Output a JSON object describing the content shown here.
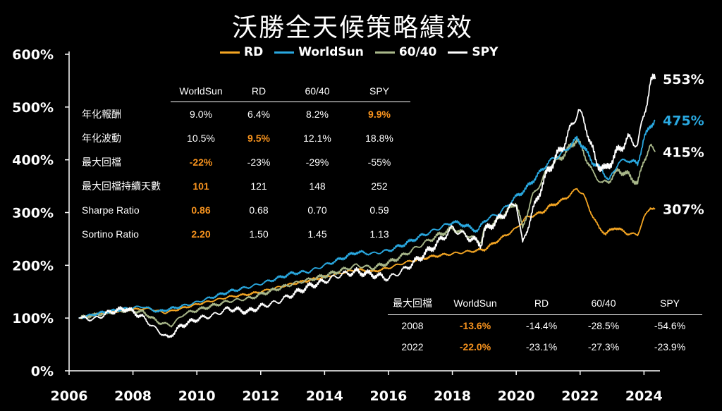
{
  "title": "沃勝全天候策略績效",
  "chart_data": {
    "type": "line",
    "title": "沃勝全天候策略績效",
    "xlim": [
      2006,
      2024.5
    ],
    "ylim": [
      0,
      600
    ],
    "xticks": [
      "2006",
      "2008",
      "2010",
      "2012",
      "2014",
      "2016",
      "2018",
      "2020",
      "2022",
      "2024"
    ],
    "yticks": [
      "0%",
      "100%",
      "200%",
      "300%",
      "400%",
      "500%",
      "600%"
    ],
    "legend_position": "top-center",
    "series": [
      {
        "name": "RD",
        "color": "#f5a623",
        "end_label": "307%",
        "label_color": "#ffffff",
        "points": [
          [
            2006.3,
            100
          ],
          [
            2007,
            108
          ],
          [
            2007.8,
            116
          ],
          [
            2008.5,
            118
          ],
          [
            2009,
            110
          ],
          [
            2009.5,
            118
          ],
          [
            2010,
            126
          ],
          [
            2011,
            140
          ],
          [
            2011.7,
            146
          ],
          [
            2012,
            150
          ],
          [
            2013,
            165
          ],
          [
            2014,
            178
          ],
          [
            2014.5,
            185
          ],
          [
            2015,
            192
          ],
          [
            2015.5,
            188
          ],
          [
            2016,
            195
          ],
          [
            2016.5,
            205
          ],
          [
            2017,
            212
          ],
          [
            2017.5,
            218
          ],
          [
            2018,
            222
          ],
          [
            2018.5,
            226
          ],
          [
            2019,
            230
          ],
          [
            2019.5,
            250
          ],
          [
            2020,
            270
          ],
          [
            2020.3,
            290
          ],
          [
            2020.8,
            300
          ],
          [
            2021,
            310
          ],
          [
            2021.5,
            325
          ],
          [
            2021.9,
            345
          ],
          [
            2022.1,
            335
          ],
          [
            2022.3,
            305
          ],
          [
            2022.6,
            270
          ],
          [
            2022.8,
            260
          ],
          [
            2023.1,
            272
          ],
          [
            2023.5,
            260
          ],
          [
            2023.8,
            258
          ],
          [
            2024,
            290
          ],
          [
            2024.2,
            310
          ],
          [
            2024.35,
            307
          ]
        ]
      },
      {
        "name": "WorldSun",
        "color": "#29a8e0",
        "end_label": "475%",
        "label_color": "#29a8e0",
        "points": [
          [
            2006.3,
            100
          ],
          [
            2007,
            110
          ],
          [
            2007.8,
            118
          ],
          [
            2008.3,
            122
          ],
          [
            2008.8,
            112
          ],
          [
            2009.2,
            118
          ],
          [
            2009.7,
            125
          ],
          [
            2010,
            130
          ],
          [
            2011,
            150
          ],
          [
            2011.7,
            160
          ],
          [
            2012,
            165
          ],
          [
            2013,
            185
          ],
          [
            2013.5,
            188
          ],
          [
            2014,
            200
          ],
          [
            2014.5,
            212
          ],
          [
            2015,
            225
          ],
          [
            2015.5,
            222
          ],
          [
            2016,
            228
          ],
          [
            2016.5,
            240
          ],
          [
            2017,
            255
          ],
          [
            2017.5,
            268
          ],
          [
            2018,
            282
          ],
          [
            2018.3,
            278
          ],
          [
            2018.8,
            265
          ],
          [
            2019,
            285
          ],
          [
            2019.5,
            300
          ],
          [
            2020,
            330
          ],
          [
            2020.3,
            345
          ],
          [
            2020.8,
            380
          ],
          [
            2021,
            395
          ],
          [
            2021.5,
            415
          ],
          [
            2021.9,
            440
          ],
          [
            2022.1,
            425
          ],
          [
            2022.4,
            395
          ],
          [
            2022.7,
            380
          ],
          [
            2022.9,
            360
          ],
          [
            2023.2,
            395
          ],
          [
            2023.5,
            400
          ],
          [
            2023.8,
            392
          ],
          [
            2024,
            440
          ],
          [
            2024.2,
            465
          ],
          [
            2024.35,
            475
          ]
        ]
      },
      {
        "name": "60/40",
        "color": "#a9b88a",
        "end_label": "415%",
        "label_color": "#ffffff",
        "points": [
          [
            2006.3,
            100
          ],
          [
            2007,
            108
          ],
          [
            2007.8,
            114
          ],
          [
            2008.3,
            112
          ],
          [
            2008.8,
            92
          ],
          [
            2009.2,
            86
          ],
          [
            2009.6,
            108
          ],
          [
            2010,
            115
          ],
          [
            2011,
            132
          ],
          [
            2011.7,
            138
          ],
          [
            2012,
            145
          ],
          [
            2013,
            165
          ],
          [
            2014,
            180
          ],
          [
            2014.5,
            190
          ],
          [
            2015,
            200
          ],
          [
            2015.5,
            195
          ],
          [
            2016,
            205
          ],
          [
            2016.5,
            220
          ],
          [
            2017,
            238
          ],
          [
            2017.5,
            255
          ],
          [
            2018,
            270
          ],
          [
            2018.3,
            262
          ],
          [
            2018.9,
            245
          ],
          [
            2019,
            268
          ],
          [
            2019.5,
            290
          ],
          [
            2020,
            320
          ],
          [
            2020.2,
            270
          ],
          [
            2020.5,
            330
          ],
          [
            2020.8,
            360
          ],
          [
            2021,
            385
          ],
          [
            2021.5,
            410
          ],
          [
            2021.9,
            440
          ],
          [
            2022.1,
            415
          ],
          [
            2022.4,
            375
          ],
          [
            2022.7,
            355
          ],
          [
            2022.9,
            360
          ],
          [
            2023.2,
            380
          ],
          [
            2023.5,
            372
          ],
          [
            2023.8,
            355
          ],
          [
            2024,
            400
          ],
          [
            2024.2,
            425
          ],
          [
            2024.35,
            415
          ]
        ]
      },
      {
        "name": "SPY",
        "color": "#ffffff",
        "end_label": "553%",
        "label_color": "#ffffff",
        "points": [
          [
            2006.3,
            100
          ],
          [
            2006.8,
            98
          ],
          [
            2007.3,
            112
          ],
          [
            2007.8,
            118
          ],
          [
            2008.3,
            102
          ],
          [
            2008.7,
            80
          ],
          [
            2009.1,
            62
          ],
          [
            2009.5,
            85
          ],
          [
            2010,
            98
          ],
          [
            2010.5,
            105
          ],
          [
            2011,
            118
          ],
          [
            2011.6,
            112
          ],
          [
            2012,
            122
          ],
          [
            2012.5,
            130
          ],
          [
            2013,
            145
          ],
          [
            2013.5,
            160
          ],
          [
            2014,
            170
          ],
          [
            2014.5,
            182
          ],
          [
            2015,
            188
          ],
          [
            2015.7,
            180
          ],
          [
            2016,
            175
          ],
          [
            2016.5,
            192
          ],
          [
            2017,
            215
          ],
          [
            2017.5,
            240
          ],
          [
            2018,
            270
          ],
          [
            2018.3,
            260
          ],
          [
            2018.9,
            240
          ],
          [
            2019,
            265
          ],
          [
            2019.5,
            290
          ],
          [
            2020,
            320
          ],
          [
            2020.2,
            240
          ],
          [
            2020.5,
            300
          ],
          [
            2020.8,
            350
          ],
          [
            2021,
            380
          ],
          [
            2021.5,
            430
          ],
          [
            2021.95,
            495
          ],
          [
            2022.2,
            460
          ],
          [
            2022.5,
            395
          ],
          [
            2022.8,
            380
          ],
          [
            2023.1,
            410
          ],
          [
            2023.5,
            440
          ],
          [
            2023.8,
            430
          ],
          [
            2024,
            485
          ],
          [
            2024.2,
            545
          ],
          [
            2024.35,
            553
          ]
        ]
      }
    ]
  },
  "legend": [
    {
      "name": "RD",
      "color": "#f5a623"
    },
    {
      "name": "WorldSun",
      "color": "#29a8e0"
    },
    {
      "name": "60/40",
      "color": "#a9b88a"
    },
    {
      "name": "SPY",
      "color": "#ffffff"
    }
  ],
  "stats_table": {
    "headers": [
      "WorldSun",
      "RD",
      "60/40",
      "SPY"
    ],
    "rows": [
      {
        "label": "年化報酬",
        "values": [
          "9.0%",
          "6.4%",
          "8.2%",
          "9.9%"
        ],
        "highlight": 3
      },
      {
        "label": "年化波動",
        "values": [
          "10.5%",
          "9.5%",
          "12.1%",
          "18.8%"
        ],
        "highlight": 1
      },
      {
        "label": "最大回檔",
        "values": [
          "-22%",
          "-23%",
          "-29%",
          "-55%"
        ],
        "highlight": 0
      },
      {
        "label": "最大回檔持續天數",
        "values": [
          "101",
          "121",
          "148",
          "252"
        ],
        "highlight": 0
      },
      {
        "label": "Sharpe Ratio",
        "values": [
          "0.86",
          "0.68",
          "0.70",
          "0.59"
        ],
        "highlight": 0
      },
      {
        "label": "Sortino Ratio",
        "values": [
          "2.20",
          "1.50",
          "1.45",
          "1.13"
        ],
        "highlight": 0
      }
    ]
  },
  "drawdown_table": {
    "corner": "最大回檔",
    "headers": [
      "WorldSun",
      "RD",
      "60/40",
      "SPY"
    ],
    "rows": [
      {
        "label": "2008",
        "values": [
          "-13.6%",
          "-14.4%",
          "-28.5%",
          "-54.6%"
        ],
        "highlight": 0
      },
      {
        "label": "2022",
        "values": [
          "-22.0%",
          "-23.1%",
          "-27.3%",
          "-23.9%"
        ],
        "highlight": 0
      }
    ]
  },
  "colors": {
    "background": "#000000",
    "highlight": "#f7931e",
    "axis": "#ffffff"
  }
}
